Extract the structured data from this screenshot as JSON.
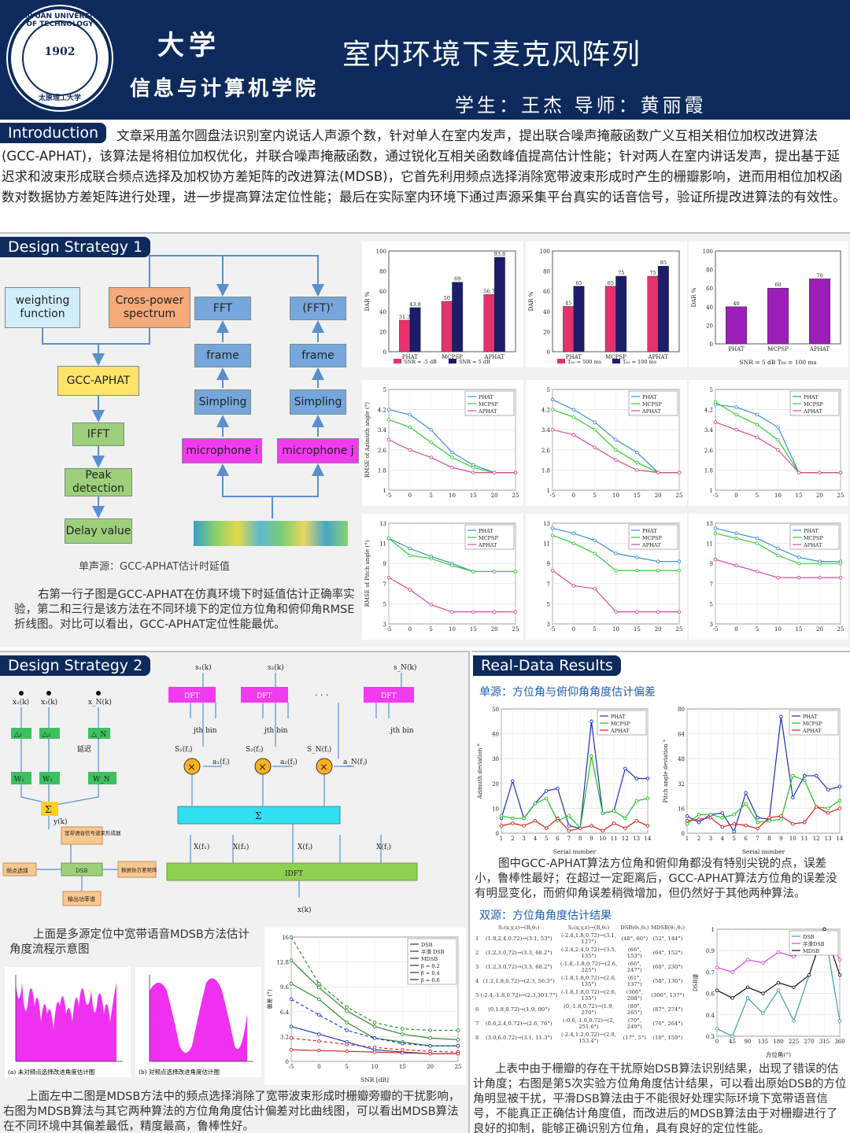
{
  "header": {
    "university_name": "大学",
    "department": "信息与计算机学院",
    "title": "室内环境下麦克风阵列",
    "authors": "学生：王杰    导师：黄丽霞",
    "logo_year": "1902",
    "logo_text_top": "TAIYUAN UNIVERSITY OF TECHNOLOGY",
    "logo_text_bottom": "太原理工大学"
  },
  "introduction": {
    "tag": "Introduction",
    "text": "文章采用盖尔圆盘法识别室内说话人声源个数，针对单人在室内发声，提出联合噪声掩蔽函数广义互相关相位加权改进算法(GCC-APHAT)，该算法是将相位加权优化，并联合噪声掩蔽函数，通过锐化互相关函数峰值提高估计性能；针对两人在室内讲话发声，提出基于延迟求和波束形成联合频点选择及加权协方差矩阵的改进算法(MDSB)，它首先利用频点选择消除宽带波束形成时产生的栅瓣影响，进而用相位加权函数对数据协方差矩阵进行处理，进一步提高算法定位性能；最后在实际室内环境下通过声源采集平台真实的话音信号，验证所提改进算法的有效性。"
  },
  "design1": {
    "tag": "Design Strategy 1",
    "boxes": {
      "weighting": "weighting function",
      "cross": "Cross-power spectrum",
      "gcc": "GCC-APHAT",
      "ifft": "IFFT",
      "peak": "Peak detection",
      "delay": "Delay value",
      "fft": "FFT",
      "fft2": "(FFT)'",
      "frame": "frame",
      "sampling": "Simpling",
      "mic_i": "microphone i",
      "mic_j": "microphone j"
    },
    "caption": "单声源：GCC-APHAT估计时延值",
    "text": "右第一行子图是GCC-APHAT在仿真环境下时延值估计正确率实验，第二和三行是该方法在不同环境下的定位方位角和俯仰角RMSE折线图。对比可以看出，GCC-APHAT定位性能最优。"
  },
  "design2": {
    "tag": "Design Strategy 2",
    "text1": "上面是多源定位中宽带语音MDSB方法估计角度流程示意图",
    "text2": "上面左中二图是MDSB方法中的频点选择消除了宽带波束形成时栅瓣旁瓣的干扰影响，右图为MDSB算法与其它两种算法的方位角角度估计偏差对比曲线图，可以看出MDSB算法在不同环境中其偏差最低，精度最高，鲁棒性好。",
    "flow": {
      "s1": "s₁(k)",
      "s2": "s₂(k)",
      "sN": "s_N(k)",
      "dft": "DFT",
      "jth": "jth bin",
      "S1": "S₁(fⱼ)",
      "S2": "S₂(fⱼ)",
      "SN": "S_N(fⱼ)",
      "a1": "a₁(fⱼ)",
      "a2": "a₂(fⱼ)",
      "aN": "a_N(fⱼ)",
      "sigma": "Σ",
      "idft": "IDFT",
      "xk": "x(k)",
      "x1": "x₁(k)",
      "x2": "x₂(k)",
      "xN": "x_N(k)",
      "d1": "△₁",
      "d2": "△₂",
      "dN": "△_N",
      "delay": "延迟",
      "w1": "W₁",
      "w2": "W₂",
      "wN": "W_N",
      "yk": "y(k)",
      "bf": "宽带语音信号波束形成器",
      "fs": "频点选择",
      "dsb": "DSB",
      "cov": "数据协方差矩阵",
      "out": "输出功率谱",
      "Xf1": "X(f₁)",
      "Xf2": "X(f₂)",
      "Xfj": "X(fⱼ)",
      "XfJ": "X(fⱼ)"
    },
    "spec_caption_a": "(a) 未对频点选择改进角度估计图",
    "spec_caption_b": "(b) 对频点选择改进角度估计图"
  },
  "realdata": {
    "tag": "Real-Data Results",
    "sub1": "单源：方位角与俯仰角角度估计偏差",
    "sub2": "双源：方位角角度估计结果",
    "text1": "图中GCC-APHAT算法方位角和俯仰角都没有特别尖锐的点，误差小，鲁棒性最好；在超过一定距离后，GCC-APHAT算法方位角的误差没有明显变化，而俯仰角误差稍微增加，但仍然好于其他两种算法。",
    "text2": "上表中由于栅瓣的存在干扰原始DSB算法识别结果，出现了错误的估计角度；右图是第5次实验方位角角度估计结果，可以看出原始DSB的方位角明显被干扰，平滑DSB算法由于不能很好处理实际环境下宽带语音信号，不能真正正确估计角度值，而改进后的MDSB算法由于对栅瓣进行了良好的抑制，能够正确识别方位角，具有良好的定位性能。",
    "table": {
      "headers": [
        "",
        "S₁(x,y,z)→(R,θ₁)",
        "S₂(x,y,z)→(R,θ₂)",
        "DSB(θ₁,θ₂)",
        "MDSB(θ₁,θ₂)"
      ],
      "rows": [
        [
          "1",
          "(1.8,2.4,0.72)→(3.1, 53°)",
          "(-2.4,1.8,0.72)→(3.1, 127°)",
          "(48°, 60°)",
          "(52°, 144°)"
        ],
        [
          "2",
          "(1.2,3.0,72)→(3.3, 68.2°)",
          "(-2.4,2.4,0.72)→(3.5, 135°)",
          "(66°, 153°)",
          "(64°, 152°)"
        ],
        [
          "3",
          "(1.2,3.0,72)→(3.3, 68.2°)",
          "(-1.8,-1.8,0.72)→(2.6, 225°)",
          "(66°, 247°)",
          "(60°, 230°)"
        ],
        [
          "4",
          "(1.2,1.8,0.72)→(2.3, 56.3°)",
          "(-1.8,1.8,0.72)→(2.6, 135°)",
          "(61°, 137°)",
          "(58°, 136°)"
        ],
        [
          "5",
          "(-2.4,-1.8,0.72)→(2.3,303.7°)",
          "(-1.8,1.8,0.72)→(2.6, 135°)",
          "(306°, 208°)",
          "(306°, 137°)"
        ],
        [
          "6",
          "(0,1.8,0.72)→(1.9, 90°)",
          "(0,-1.8,0.72)→(1.9, 270°)",
          "(89°, 265°)",
          "(87°, 274°)"
        ],
        [
          "7",
          "(0.6,2.4,0.72)→(2.6, 76°)",
          "(-0.6,-1.8,0.72)→(2, 251.6°)",
          "(70°, 249°)",
          "(76°, 264°)"
        ],
        [
          "8",
          "(3.0,6.0.72)→(3.1, 11.3°)",
          "(-2.4,1.2,0.72)→(2.8, 153.4°)",
          "(17°, 5°)",
          "(10°, 159°)"
        ]
      ]
    }
  },
  "chart_data": [
    {
      "type": "bar",
      "ylabel": "DAR %",
      "categories": [
        "PHAT",
        "MCPSP",
        "APHAT"
      ],
      "series": [
        {
          "name": "SNR = -5 dB",
          "values": [
            31.3,
            50,
            56.7
          ],
          "color": "#e6316f"
        },
        {
          "name": "SNR = 5 dB",
          "values": [
            43.8,
            69,
            93.8
          ],
          "color": "#1c1c6a"
        }
      ],
      "ylim": [
        0,
        100
      ]
    },
    {
      "type": "bar",
      "ylabel": "DAR %",
      "categories": [
        "PHAT",
        "MCPSP",
        "APHAT"
      ],
      "series": [
        {
          "name": "T₆₀ = 500 ms",
          "values": [
            45,
            65,
            75
          ],
          "color": "#e6316f"
        },
        {
          "name": "T₆₀ = 100 ms",
          "values": [
            65,
            75,
            85
          ],
          "color": "#1c1c6a"
        }
      ],
      "ylim": [
        0,
        100
      ]
    },
    {
      "type": "bar",
      "ylabel": "DAR %",
      "xlabel": "SNR = 5 dB  T₆₀ = 100 ms",
      "categories": [
        "PHAT",
        "MCPSP",
        "APHAT"
      ],
      "series": [
        {
          "name": "",
          "values": [
            40,
            60,
            70
          ],
          "color": "#9b1fb8"
        }
      ],
      "ylim": [
        0,
        100
      ]
    },
    {
      "type": "line",
      "ylabel": "RMSE of Azimuth angle (°)",
      "x": [
        -5,
        0,
        5,
        10,
        15,
        20,
        25
      ],
      "series": [
        {
          "name": "PHAT",
          "values": [
            4.2,
            4.0,
            3.4,
            2.5,
            2.0,
            1.7,
            1.7
          ],
          "color": "#3b8fd8"
        },
        {
          "name": "MCPSP",
          "values": [
            3.8,
            3.5,
            2.9,
            2.3,
            1.9,
            1.7,
            1.7
          ],
          "color": "#32cd32"
        },
        {
          "name": "APHAT",
          "values": [
            3.0,
            2.6,
            2.3,
            1.9,
            1.7,
            1.7,
            1.7
          ],
          "color": "#d44d9a"
        }
      ],
      "ylim": [
        1,
        5
      ]
    },
    {
      "type": "line",
      "ylabel": "",
      "x": [
        -5,
        0,
        5,
        10,
        15,
        20,
        25
      ],
      "series": [
        {
          "name": "PHAT",
          "values": [
            4.6,
            4.2,
            3.7,
            3.0,
            2.5,
            1.7,
            1.7
          ],
          "color": "#3b8fd8"
        },
        {
          "name": "MCPSP",
          "values": [
            4.2,
            3.9,
            3.4,
            2.6,
            2.1,
            1.7,
            1.7
          ],
          "color": "#32cd32"
        },
        {
          "name": "APHAT",
          "values": [
            3.4,
            3.2,
            2.7,
            2.2,
            1.8,
            1.7,
            1.7
          ],
          "color": "#d44d9a"
        }
      ],
      "ylim": [
        1,
        5
      ]
    },
    {
      "type": "line",
      "ylabel": "",
      "x": [
        -5,
        0,
        5,
        10,
        15,
        20,
        25
      ],
      "series": [
        {
          "name": "PHAT",
          "values": [
            4.4,
            4.3,
            4.0,
            3.5,
            1.7,
            1.7,
            1.7
          ],
          "color": "#3b8fd8"
        },
        {
          "name": "MCPSP",
          "values": [
            4.5,
            4.0,
            3.6,
            3.0,
            1.7,
            1.7,
            1.7
          ],
          "color": "#32cd32"
        },
        {
          "name": "APHAT",
          "values": [
            3.7,
            3.4,
            3.1,
            2.6,
            1.7,
            1.7,
            1.7
          ],
          "color": "#d44d9a"
        }
      ],
      "ylim": [
        1,
        5
      ]
    },
    {
      "type": "line",
      "ylabel": "RMSE of Pitch angle (°)",
      "x": [
        -5,
        0,
        5,
        10,
        15,
        20,
        25
      ],
      "series": [
        {
          "name": "PHAT",
          "values": [
            11.5,
            10.5,
            9.7,
            9.0,
            8.2,
            8.2,
            8.2
          ],
          "color": "#3b8fd8"
        },
        {
          "name": "MCPSP",
          "values": [
            11.5,
            9.8,
            9.5,
            8.8,
            8.2,
            8.2,
            8.2
          ],
          "color": "#32cd32"
        },
        {
          "name": "APHAT",
          "values": [
            7.6,
            6.4,
            4.9,
            4.2,
            4.2,
            4.2,
            4.2
          ],
          "color": "#d44d9a"
        }
      ],
      "ylim": [
        3,
        13
      ]
    },
    {
      "type": "line",
      "ylabel": "",
      "x": [
        -5,
        0,
        5,
        10,
        15,
        20,
        25
      ],
      "series": [
        {
          "name": "PHAT",
          "values": [
            12.5,
            12.0,
            11.3,
            10.0,
            9.6,
            9.2,
            9.2
          ],
          "color": "#3b8fd8"
        },
        {
          "name": "MCPSP",
          "values": [
            11.8,
            11.0,
            10.0,
            8.3,
            8.3,
            8.3,
            8.3
          ],
          "color": "#32cd32"
        },
        {
          "name": "APHAT",
          "values": [
            8.3,
            6.8,
            6.5,
            4.2,
            4.2,
            4.2,
            4.2
          ],
          "color": "#d44d9a"
        }
      ],
      "ylim": [
        3,
        13
      ]
    },
    {
      "type": "line",
      "ylabel": "",
      "x": [
        -5,
        0,
        5,
        10,
        15,
        20,
        25
      ],
      "series": [
        {
          "name": "PHAT",
          "values": [
            12.5,
            12.0,
            11.5,
            10.5,
            9.6,
            9.2,
            9.2
          ],
          "color": "#3b8fd8"
        },
        {
          "name": "MCPSP",
          "values": [
            12.0,
            11.5,
            11.0,
            9.8,
            9.0,
            9.0,
            9.0
          ],
          "color": "#32cd32"
        },
        {
          "name": "APHAT",
          "values": [
            9.4,
            8.8,
            8.2,
            7.6,
            7.6,
            7.6,
            7.6
          ],
          "color": "#d44d9a"
        }
      ],
      "ylim": [
        3,
        13
      ]
    },
    {
      "type": "line",
      "xlabel": "SNR [dB]",
      "ylabel": "偏差 (°)",
      "x": [
        -5,
        0,
        5,
        10,
        15,
        20,
        25
      ],
      "series": [
        {
          "name": "DSB β=0.6",
          "values": [
            16,
            10,
            7,
            5,
            4.2,
            4.0,
            4.0
          ],
          "color": "#2e8b2e"
        },
        {
          "name": "平滑DSB β=0.6",
          "values": [
            13,
            9.5,
            6.5,
            4.5,
            3.5,
            3.0,
            2.8
          ],
          "color": "#2e8b2e"
        },
        {
          "name": "MDSB β=0.6",
          "values": [
            10,
            8,
            5,
            3,
            2.5,
            2.0,
            2.0
          ],
          "color": "#2e8b2e"
        },
        {
          "name": "DSB β=0.4",
          "values": [
            8,
            6,
            4,
            3,
            2.3,
            2.0,
            2.0
          ],
          "color": "#1a3cc8"
        },
        {
          "name": "MDSB β=0.4",
          "values": [
            4.5,
            3.5,
            2.5,
            1.5,
            1.2,
            1.0,
            1.0
          ],
          "color": "#1a3cc8"
        },
        {
          "name": "DSB β=0.2",
          "values": [
            3,
            2.6,
            2.2,
            1.8,
            1.5,
            1.3,
            1.2
          ],
          "color": "#d42a2a"
        },
        {
          "name": "MDSB β=0.2",
          "values": [
            1.5,
            1.4,
            1.3,
            1.2,
            1.1,
            1.0,
            1.0
          ],
          "color": "#d42a2a"
        }
      ],
      "legend": [
        "DSB",
        "平滑 DSB",
        "MDSB",
        "β = 0.2",
        "β = 0.4",
        "β = 0.6"
      ],
      "ylim": [
        0,
        16
      ]
    },
    {
      "type": "line",
      "xlabel": "Serial number",
      "ylabel": "Azimuth deviation °",
      "x": [
        1,
        2,
        3,
        4,
        5,
        6,
        7,
        8,
        9,
        10,
        11,
        12,
        13,
        14
      ],
      "series": [
        {
          "name": "PHAT",
          "values": [
            6,
            21,
            6,
            12,
            17,
            18,
            3,
            2,
            45,
            8,
            9,
            26,
            22,
            22
          ],
          "color": "#1830b8"
        },
        {
          "name": "MCPSP",
          "values": [
            7,
            6,
            6,
            12,
            14,
            5,
            7,
            2,
            31,
            8,
            9,
            6,
            13,
            14
          ],
          "color": "#20c020"
        },
        {
          "name": "APHAT",
          "values": [
            3,
            4,
            3,
            5,
            2,
            6,
            1,
            2,
            3,
            1,
            4,
            2,
            5,
            3
          ],
          "color": "#d42020"
        }
      ],
      "ylim": [
        0,
        50
      ]
    },
    {
      "type": "line",
      "xlabel": "Serial number",
      "ylabel": "Pitch angle deviation °",
      "x": [
        1,
        2,
        3,
        4,
        5,
        6,
        7,
        8,
        9,
        10,
        11,
        12,
        13,
        14
      ],
      "series": [
        {
          "name": "PHAT",
          "values": [
            11,
            7,
            12,
            13,
            1,
            26,
            10,
            9,
            75,
            23,
            37,
            37,
            28,
            30
          ],
          "color": "#1830b8"
        },
        {
          "name": "MCPSP",
          "values": [
            6,
            12,
            12,
            10,
            12,
            19,
            7,
            8,
            9,
            37,
            34,
            17,
            16,
            21
          ],
          "color": "#20c020"
        },
        {
          "name": "APHAT",
          "values": [
            8,
            9,
            10,
            4,
            6,
            5,
            3,
            10,
            11,
            6,
            7,
            17,
            13,
            16
          ],
          "color": "#d42020"
        }
      ],
      "ylim": [
        0,
        80
      ]
    },
    {
      "type": "line",
      "xlabel": "方位角(°)",
      "ylabel": "DSB谱",
      "x": [
        0,
        45,
        90,
        135,
        180,
        225,
        270,
        315,
        360
      ],
      "series": [
        {
          "name": "DSB",
          "values": [
            0.35,
            0.3,
            0.55,
            0.45,
            0.6,
            0.4,
            0.7,
            1.0,
            0.4
          ],
          "color": "#3aa0a0"
        },
        {
          "name": "平滑DSB",
          "values": [
            0.75,
            0.72,
            0.8,
            0.78,
            0.85,
            0.82,
            0.88,
            1.0,
            0.8
          ],
          "color": "#e040e0"
        },
        {
          "name": "MDSB",
          "values": [
            0.6,
            0.55,
            0.62,
            0.58,
            0.65,
            0.62,
            0.7,
            1.0,
            0.7
          ],
          "color": "#111111"
        }
      ],
      "ylim": [
        0.3,
        1.0
      ]
    }
  ]
}
